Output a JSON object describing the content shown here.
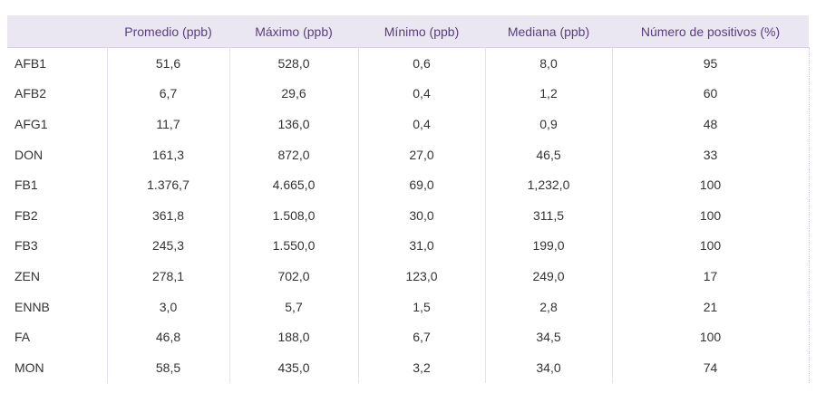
{
  "table": {
    "headers": [
      "",
      "Promedio (ppb)",
      "Máximo (ppb)",
      "Mínimo (ppb)",
      "Mediana (ppb)",
      "Número de positivos (%)"
    ],
    "rows": [
      {
        "label": "AFB1",
        "values": [
          "51,6",
          "528,0",
          "0,6",
          "8,0",
          "95"
        ]
      },
      {
        "label": "AFB2",
        "values": [
          "6,7",
          "29,6",
          "0,4",
          "1,2",
          "60"
        ]
      },
      {
        "label": "AFG1",
        "values": [
          "11,7",
          "136,0",
          "0,4",
          "0,9",
          "48"
        ]
      },
      {
        "label": "DON",
        "values": [
          "161,3",
          "872,0",
          "27,0",
          "46,5",
          "33"
        ]
      },
      {
        "label": "FB1",
        "values": [
          "1.376,7",
          "4.665,0",
          "69,0",
          "1,232,0",
          "100"
        ]
      },
      {
        "label": "FB2",
        "values": [
          "361,8",
          "1.508,0",
          "30,0",
          "311,5",
          "100"
        ]
      },
      {
        "label": "FB3",
        "values": [
          "245,3",
          "1.550,0",
          "31,0",
          "199,0",
          "100"
        ]
      },
      {
        "label": "ZEN",
        "values": [
          "278,1",
          "702,0",
          "123,0",
          "249,0",
          "17"
        ]
      },
      {
        "label": "ENNB",
        "values": [
          "3,0",
          "5,7",
          "1,5",
          "2,8",
          "21"
        ]
      },
      {
        "label": "FA",
        "values": [
          "46,8",
          "188,0",
          "6,7",
          "34,5",
          "100"
        ]
      },
      {
        "label": "MON",
        "values": [
          "58,5",
          "435,0",
          "3,2",
          "34,0",
          "74"
        ]
      }
    ]
  },
  "colors": {
    "header_bg": "#ebe7f2",
    "header_text": "#5a3d7e",
    "body_text": "#333333"
  }
}
